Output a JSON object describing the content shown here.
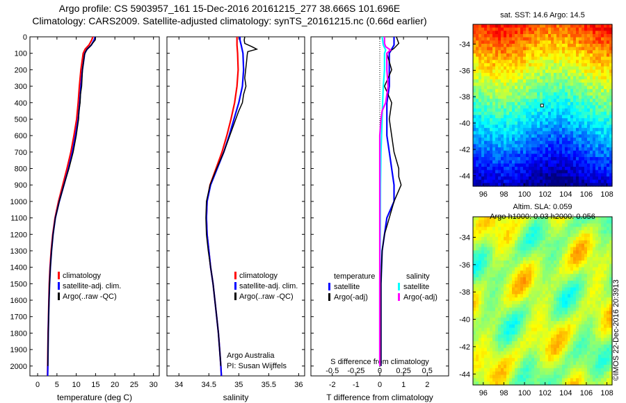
{
  "header": {
    "line1": "Argo profile: CS 5903957_161 15-Dec-2016 20161215_277 38.666S 101.696E",
    "line2": "Climatology: CARS2009. Satellite-adjusted climatology: synTS_20161215.nc (0.66d earlier)"
  },
  "chart_data": [
    {
      "type": "line",
      "xlabel": "temperature (deg C)",
      "ylabel": "",
      "xlim": [
        -2,
        31.5
      ],
      "ylim": [
        2060,
        0
      ],
      "xticks": [
        0,
        5,
        10,
        15,
        20,
        25,
        30
      ],
      "yticks": [
        0,
        100,
        200,
        300,
        400,
        500,
        600,
        700,
        800,
        900,
        1000,
        1100,
        1200,
        1300,
        1400,
        1500,
        1600,
        1700,
        1800,
        1900,
        2000
      ],
      "legend": {
        "placement": "lower-center",
        "entries": [
          "climatology",
          "satellite-adj. clim.",
          "Argo(..raw -QC)"
        ]
      },
      "series": [
        {
          "name": "climatology",
          "color": "#ff0000",
          "points": [
            [
              14.3,
              0
            ],
            [
              14.0,
              20
            ],
            [
              13.3,
              50
            ],
            [
              12.3,
              75
            ],
            [
              11.8,
              100
            ],
            [
              11.2,
              200
            ],
            [
              10.8,
              300
            ],
            [
              10.5,
              400
            ],
            [
              10.1,
              500
            ],
            [
              9.4,
              600
            ],
            [
              8.6,
              700
            ],
            [
              7.6,
              800
            ],
            [
              6.5,
              900
            ],
            [
              5.4,
              1000
            ],
            [
              4.5,
              1100
            ],
            [
              3.9,
              1200
            ],
            [
              3.5,
              1300
            ],
            [
              3.2,
              1400
            ],
            [
              3.0,
              1500
            ],
            [
              2.9,
              1600
            ],
            [
              2.8,
              1700
            ],
            [
              2.7,
              1800
            ],
            [
              2.65,
              1900
            ],
            [
              2.6,
              2000
            ],
            [
              2.55,
              2060
            ]
          ]
        },
        {
          "name": "satellite-adj. clim.",
          "color": "#0000ff",
          "points": [
            [
              14.9,
              0
            ],
            [
              14.6,
              20
            ],
            [
              13.9,
              50
            ],
            [
              12.8,
              75
            ],
            [
              12.2,
              100
            ],
            [
              11.6,
              200
            ],
            [
              11.2,
              300
            ],
            [
              10.9,
              400
            ],
            [
              10.5,
              500
            ],
            [
              9.8,
              600
            ],
            [
              9.0,
              700
            ],
            [
              8.0,
              800
            ],
            [
              6.8,
              900
            ],
            [
              5.6,
              1000
            ],
            [
              4.6,
              1100
            ],
            [
              4.0,
              1200
            ],
            [
              3.6,
              1300
            ],
            [
              3.3,
              1400
            ],
            [
              3.1,
              1500
            ],
            [
              2.95,
              1600
            ],
            [
              2.85,
              1700
            ],
            [
              2.75,
              1800
            ],
            [
              2.7,
              1900
            ],
            [
              2.65,
              2000
            ],
            [
              2.6,
              2060
            ]
          ]
        },
        {
          "name": "Argo(..raw -QC)",
          "color": "#000000",
          "points": [
            [
              15.0,
              0
            ],
            [
              14.9,
              20
            ],
            [
              14.2,
              40
            ],
            [
              13.5,
              60
            ],
            [
              12.6,
              80
            ],
            [
              12.1,
              110
            ],
            [
              11.9,
              150
            ],
            [
              11.6,
              200
            ],
            [
              11.5,
              250
            ],
            [
              11.4,
              300
            ],
            [
              11.1,
              350
            ],
            [
              11.0,
              400
            ],
            [
              10.7,
              450
            ],
            [
              10.6,
              500
            ],
            [
              10.0,
              600
            ],
            [
              9.2,
              700
            ],
            [
              8.1,
              800
            ],
            [
              6.8,
              900
            ],
            [
              5.6,
              1000
            ],
            [
              4.6,
              1100
            ],
            [
              4.0,
              1200
            ],
            [
              3.6,
              1300
            ],
            [
              3.3,
              1400
            ],
            [
              3.1,
              1500
            ],
            [
              2.95,
              1600
            ],
            [
              2.85,
              1700
            ],
            [
              2.75,
              1800
            ],
            [
              2.7,
              1900
            ],
            [
              2.65,
              2000
            ]
          ]
        }
      ]
    },
    {
      "type": "line",
      "xlabel": "salinity",
      "ylabel": "",
      "xlim": [
        33.8,
        36.1
      ],
      "ylim": [
        2060,
        0
      ],
      "xticks": [
        34,
        34.5,
        35,
        35.5,
        36
      ],
      "legend": {
        "placement": "lower-center",
        "entries": [
          "climatology",
          "satellite-adj. clim.",
          "Argo(..raw -QC)"
        ]
      },
      "annotation": [
        "Argo Australia",
        "PI: Susan Wijffels"
      ],
      "series": [
        {
          "name": "climatology",
          "color": "#ff0000",
          "points": [
            [
              34.97,
              0
            ],
            [
              34.97,
              50
            ],
            [
              34.98,
              100
            ],
            [
              34.99,
              200
            ],
            [
              34.97,
              300
            ],
            [
              34.93,
              400
            ],
            [
              34.87,
              500
            ],
            [
              34.8,
              600
            ],
            [
              34.72,
              700
            ],
            [
              34.62,
              800
            ],
            [
              34.52,
              900
            ],
            [
              34.47,
              1000
            ],
            [
              34.46,
              1100
            ],
            [
              34.47,
              1200
            ],
            [
              34.5,
              1300
            ],
            [
              34.53,
              1400
            ],
            [
              34.57,
              1500
            ],
            [
              34.6,
              1600
            ],
            [
              34.63,
              1700
            ],
            [
              34.66,
              1800
            ],
            [
              34.68,
              1900
            ],
            [
              34.7,
              2000
            ],
            [
              34.71,
              2060
            ]
          ]
        },
        {
          "name": "satellite-adj. clim.",
          "color": "#0000ff",
          "points": [
            [
              35.02,
              0
            ],
            [
              35.02,
              20
            ],
            [
              35.04,
              50
            ],
            [
              35.07,
              100
            ],
            [
              35.08,
              200
            ],
            [
              35.06,
              300
            ],
            [
              35.0,
              400
            ],
            [
              34.92,
              500
            ],
            [
              34.84,
              600
            ],
            [
              34.75,
              700
            ],
            [
              34.64,
              800
            ],
            [
              34.53,
              900
            ],
            [
              34.47,
              1000
            ],
            [
              34.46,
              1100
            ],
            [
              34.47,
              1200
            ],
            [
              34.5,
              1300
            ],
            [
              34.53,
              1400
            ],
            [
              34.57,
              1500
            ],
            [
              34.6,
              1600
            ],
            [
              34.63,
              1700
            ],
            [
              34.66,
              1800
            ],
            [
              34.68,
              1900
            ],
            [
              34.7,
              2000
            ],
            [
              34.71,
              2060
            ]
          ]
        },
        {
          "name": "Argo(..raw -QC)",
          "color": "#000000",
          "points": [
            [
              35.1,
              0
            ],
            [
              35.09,
              20
            ],
            [
              35.1,
              40
            ],
            [
              35.22,
              60
            ],
            [
              35.3,
              75
            ],
            [
              35.15,
              90
            ],
            [
              35.14,
              110
            ],
            [
              35.13,
              150
            ],
            [
              35.1,
              250
            ],
            [
              35.12,
              300
            ],
            [
              35.08,
              350
            ],
            [
              35.06,
              400
            ],
            [
              35.0,
              450
            ],
            [
              34.95,
              500
            ],
            [
              34.85,
              600
            ],
            [
              34.75,
              700
            ],
            [
              34.63,
              800
            ],
            [
              34.52,
              900
            ],
            [
              34.46,
              1000
            ],
            [
              34.45,
              1100
            ],
            [
              34.46,
              1200
            ],
            [
              34.49,
              1300
            ],
            [
              34.53,
              1400
            ],
            [
              34.57,
              1500
            ],
            [
              34.6,
              1600
            ],
            [
              34.63,
              1700
            ],
            [
              34.66,
              1800
            ],
            [
              34.68,
              1900
            ],
            [
              34.7,
              2000
            ]
          ]
        }
      ]
    },
    {
      "type": "line",
      "xlabel": "T difference from climatology",
      "xlabel2": "S difference from climatology",
      "xlim": [
        -2.9,
        2.9
      ],
      "xticks": [
        -2,
        -1,
        0,
        1,
        2
      ],
      "xticks2": [
        "-0.5",
        "-0.25",
        "0",
        "0.25",
        "0.5"
      ],
      "ylim": [
        2060,
        0
      ],
      "legend": {
        "placement": "lower-center",
        "groups": [
          "temperature",
          "salinity"
        ],
        "entries": [
          [
            "satellite",
            "Argo(-adj)"
          ],
          [
            "satellite",
            "Argo(-adj)"
          ]
        ]
      },
      "series": [
        {
          "name": "satellite",
          "group": "temperature",
          "color": "#0000ff",
          "points": [
            [
              0.6,
              0
            ],
            [
              0.6,
              50
            ],
            [
              0.4,
              100
            ],
            [
              0.4,
              200
            ],
            [
              0.4,
              300
            ],
            [
              0.3,
              400
            ],
            [
              0.3,
              500
            ],
            [
              0.3,
              600
            ],
            [
              0.4,
              700
            ],
            [
              0.5,
              800
            ],
            [
              0.6,
              900
            ],
            [
              0.6,
              1000
            ],
            [
              0.3,
              1100
            ],
            [
              0.2,
              1200
            ],
            [
              0.1,
              1300
            ],
            [
              0.05,
              1500
            ],
            [
              0.05,
              2000
            ]
          ]
        },
        {
          "name": "Argo(-adj)",
          "group": "temperature",
          "color": "#000000",
          "points": [
            [
              0.7,
              0
            ],
            [
              0.8,
              40
            ],
            [
              0.6,
              70
            ],
            [
              0.3,
              100
            ],
            [
              0.5,
              200
            ],
            [
              0.2,
              300
            ],
            [
              0.5,
              400
            ],
            [
              0.4,
              500
            ],
            [
              0.5,
              600
            ],
            [
              0.6,
              700
            ],
            [
              0.8,
              800
            ],
            [
              0.8,
              850
            ],
            [
              0.9,
              900
            ],
            [
              0.6,
              1000
            ],
            [
              0.4,
              1100
            ],
            [
              0.2,
              1200
            ],
            [
              0.1,
              1300
            ],
            [
              0.05,
              1500
            ],
            [
              0.05,
              2000
            ]
          ]
        },
        {
          "name": "satellite",
          "group": "salinity",
          "color": "#00ffff",
          "points": [
            [
              0.1,
              0
            ],
            [
              0.15,
              50
            ],
            [
              0.25,
              80
            ],
            [
              0.2,
              100
            ],
            [
              0.2,
              200
            ],
            [
              0.15,
              300
            ],
            [
              0.12,
              400
            ],
            [
              0.1,
              500
            ],
            [
              0.05,
              700
            ],
            [
              0.03,
              900
            ],
            [
              0.02,
              1200
            ],
            [
              0.0,
              1500
            ],
            [
              0.0,
              2000
            ]
          ]
        },
        {
          "name": "Argo(-adj)",
          "group": "salinity",
          "color": "#ff00ff",
          "points": [
            [
              0.2,
              0
            ],
            [
              0.2,
              40
            ],
            [
              0.25,
              60
            ],
            [
              0.45,
              80
            ],
            [
              0.3,
              100
            ],
            [
              0.3,
              200
            ],
            [
              0.35,
              300
            ],
            [
              0.25,
              400
            ],
            [
              0.1,
              450
            ],
            [
              0.05,
              500
            ],
            [
              0.0,
              600
            ],
            [
              0.0,
              800
            ],
            [
              0.0,
              1000
            ],
            [
              0.0,
              1100
            ],
            [
              0.0,
              1300
            ],
            [
              0.0,
              1500
            ],
            [
              0.0,
              2000
            ]
          ]
        }
      ]
    },
    {
      "type": "heatmap",
      "title": "sat. SST: 14.6 Argo: 14.5",
      "xticks": [
        96,
        98,
        100,
        102,
        104,
        106,
        108
      ],
      "yticks": [
        -34,
        -36,
        -38,
        -40,
        -42,
        -44
      ],
      "xlim": [
        95,
        108.5
      ],
      "ylim": [
        -44.8,
        -32.5
      ],
      "colormap": "jet"
    },
    {
      "type": "heatmap",
      "title": "Altim. SLA: 0.059",
      "subtitle": "Argo h1000: 0.03 h2000: 0.056",
      "xticks": [
        96,
        98,
        100,
        102,
        104,
        106,
        108
      ],
      "yticks": [
        -34,
        -36,
        -38,
        -40,
        -42,
        -44
      ],
      "xlim": [
        95,
        108.5
      ],
      "ylim": [
        -44.8,
        -32.5
      ],
      "colormap": "jet"
    }
  ],
  "copyright": "©IMOS 22-Dec-2016 20:3913",
  "colors": {
    "climatology": "#ff0000",
    "satellite": "#0000ff",
    "argo": "#000000",
    "sal_satellite": "#00ffff",
    "sal_argo": "#ff00ff"
  }
}
